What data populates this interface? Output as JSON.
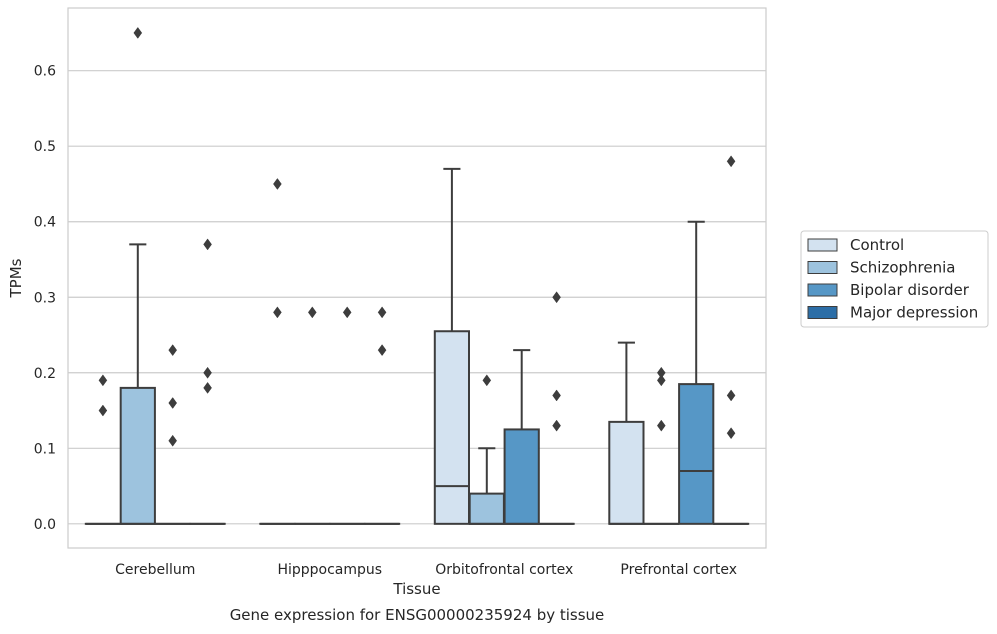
{
  "caption": "Gene expression for ENSG00000235924 by tissue",
  "chart_data": {
    "type": "box",
    "title": "",
    "xlabel": "Tissue",
    "ylabel": "TPMs",
    "ylim": [
      -0.032,
      0.683
    ],
    "yticks": [
      0.0,
      0.1,
      0.2,
      0.3,
      0.4,
      0.5,
      0.6
    ],
    "ytick_labels": [
      "0.0",
      "0.1",
      "0.2",
      "0.3",
      "0.4",
      "0.5",
      "0.6"
    ],
    "grid": "horizontal",
    "legend_position": "right",
    "categories": [
      "Cerebellum",
      "Hipppocampus",
      "Orbitofrontal cortex",
      "Prefrontal cortex"
    ],
    "series": [
      {
        "name": "Control",
        "color": "#d3e2f0",
        "boxes": [
          {
            "q1": 0,
            "median": 0,
            "q3": 0,
            "whisker_low": 0,
            "whisker_high": 0,
            "outliers": [
              0.15,
              0.19
            ]
          },
          {
            "q1": 0,
            "median": 0,
            "q3": 0,
            "whisker_low": 0,
            "whisker_high": 0,
            "outliers": [
              0.28,
              0.45
            ]
          },
          {
            "q1": 0,
            "median": 0.05,
            "q3": 0.255,
            "whisker_low": 0,
            "whisker_high": 0.47,
            "outliers": []
          },
          {
            "q1": 0,
            "median": 0,
            "q3": 0.135,
            "whisker_low": 0,
            "whisker_high": 0.24,
            "outliers": []
          }
        ]
      },
      {
        "name": "Schizophrenia",
        "color": "#9dc3de",
        "boxes": [
          {
            "q1": 0,
            "median": 0,
            "q3": 0.18,
            "whisker_low": 0,
            "whisker_high": 0.37,
            "outliers": [
              0.65
            ]
          },
          {
            "q1": 0,
            "median": 0,
            "q3": 0,
            "whisker_low": 0,
            "whisker_high": 0,
            "outliers": [
              0.28
            ]
          },
          {
            "q1": 0,
            "median": 0,
            "q3": 0.04,
            "whisker_low": 0,
            "whisker_high": 0.1,
            "outliers": [
              0.19
            ]
          },
          {
            "q1": 0,
            "median": 0,
            "q3": 0,
            "whisker_low": 0,
            "whisker_high": 0,
            "outliers": [
              0.13,
              0.19,
              0.2
            ]
          }
        ]
      },
      {
        "name": "Bipolar disorder",
        "color": "#5697c6",
        "boxes": [
          {
            "q1": 0,
            "median": 0,
            "q3": 0,
            "whisker_low": 0,
            "whisker_high": 0,
            "outliers": [
              0.11,
              0.16,
              0.23
            ]
          },
          {
            "q1": 0,
            "median": 0,
            "q3": 0,
            "whisker_low": 0,
            "whisker_high": 0,
            "outliers": [
              0.28
            ]
          },
          {
            "q1": 0,
            "median": 0,
            "q3": 0.125,
            "whisker_low": 0,
            "whisker_high": 0.23,
            "outliers": []
          },
          {
            "q1": 0,
            "median": 0.07,
            "q3": 0.185,
            "whisker_low": 0,
            "whisker_high": 0.4,
            "outliers": []
          }
        ]
      },
      {
        "name": "Major depression",
        "color": "#2c6ea7",
        "boxes": [
          {
            "q1": 0,
            "median": 0,
            "q3": 0,
            "whisker_low": 0,
            "whisker_high": 0,
            "outliers": [
              0.18,
              0.2,
              0.37
            ]
          },
          {
            "q1": 0,
            "median": 0,
            "q3": 0,
            "whisker_low": 0,
            "whisker_high": 0,
            "outliers": [
              0.23,
              0.28
            ]
          },
          {
            "q1": 0,
            "median": 0,
            "q3": 0,
            "whisker_low": 0,
            "whisker_high": 0,
            "outliers": [
              0.13,
              0.17,
              0.3
            ]
          },
          {
            "q1": 0,
            "median": 0,
            "q3": 0,
            "whisker_low": 0,
            "whisker_high": 0,
            "outliers": [
              0.12,
              0.17,
              0.48
            ]
          }
        ]
      }
    ]
  }
}
